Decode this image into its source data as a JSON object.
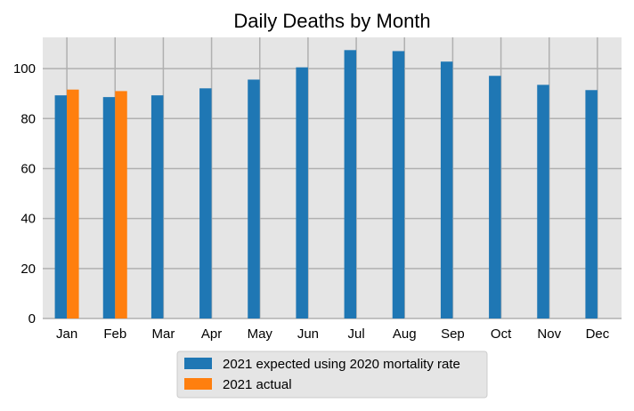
{
  "chart_data": {
    "type": "bar",
    "title": "Daily Deaths by Month",
    "xlabel": "",
    "ylabel": "",
    "categories": [
      "Jan",
      "Feb",
      "Mar",
      "Apr",
      "May",
      "Jun",
      "Jul",
      "Aug",
      "Sep",
      "Oct",
      "Nov",
      "Dec"
    ],
    "series": [
      {
        "name": "2021 expected using 2020 mortality rate",
        "color": "#1f77b4",
        "values": [
          89.3,
          88.6,
          89.3,
          92.1,
          95.6,
          100.5,
          107.4,
          107.0,
          102.8,
          97.1,
          93.5,
          91.4
        ]
      },
      {
        "name": "2021 actual",
        "color": "#ff7f0e",
        "values": [
          91.6,
          91.0,
          null,
          null,
          null,
          null,
          null,
          null,
          null,
          null,
          null,
          null
        ]
      }
    ],
    "ylim": [
      0,
      112.5
    ],
    "yticks": [
      0,
      20,
      40,
      60,
      80,
      100
    ],
    "grid": true,
    "legend_position": "bottom-center"
  }
}
